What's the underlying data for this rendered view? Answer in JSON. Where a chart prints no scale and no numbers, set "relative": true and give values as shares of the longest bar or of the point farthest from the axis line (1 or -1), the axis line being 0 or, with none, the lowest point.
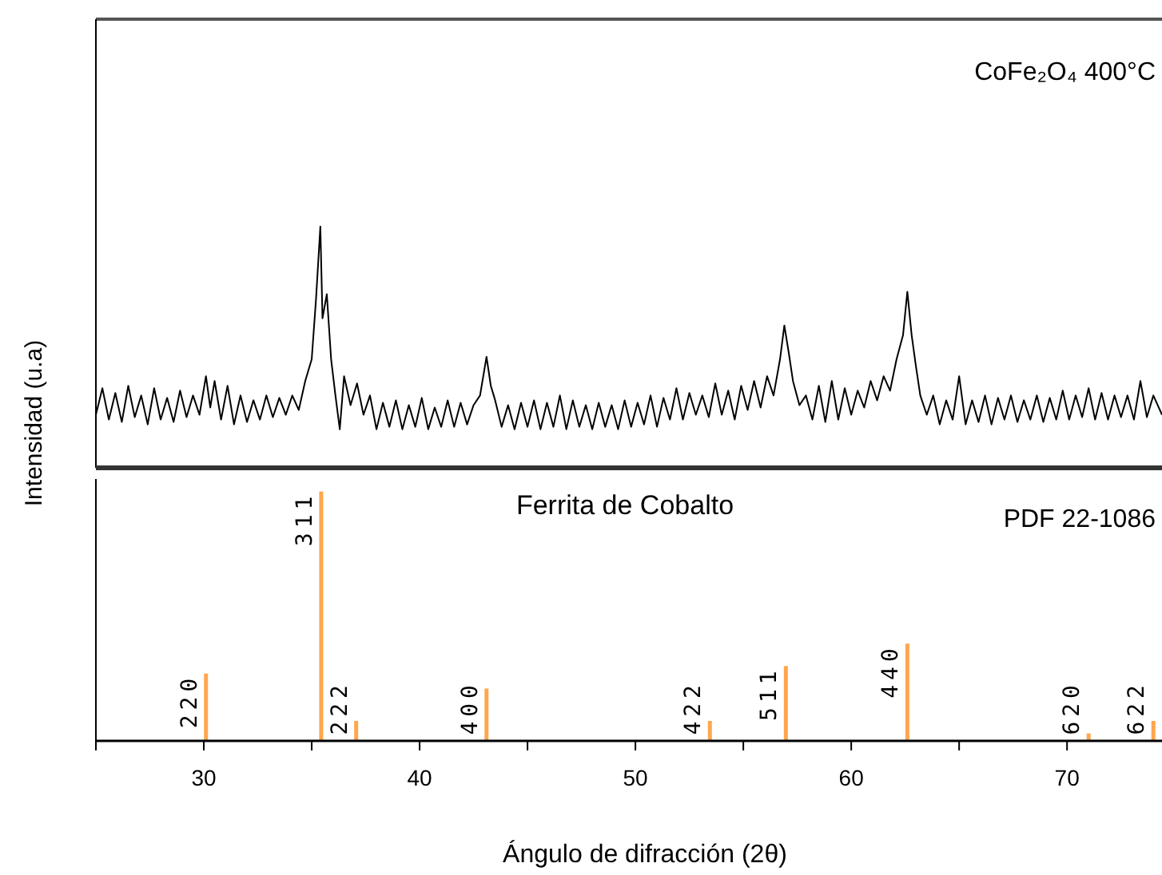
{
  "chart_data": [
    {
      "type": "line",
      "title": "CoFe₂O₄ 400°C",
      "ylabel": "Intensidad (u.a)",
      "relative": true,
      "xlim": [
        25,
        74.4
      ],
      "series": [
        {
          "color": "#000000",
          "x": [
            25.0,
            25.3,
            25.6,
            25.9,
            26.2,
            26.5,
            26.8,
            27.1,
            27.4,
            27.7,
            28.0,
            28.3,
            28.6,
            28.9,
            29.2,
            29.5,
            29.8,
            30.1,
            30.3,
            30.5,
            30.8,
            31.1,
            31.4,
            31.7,
            32.0,
            32.3,
            32.6,
            32.9,
            33.2,
            33.5,
            33.8,
            34.1,
            34.4,
            34.7,
            35.0,
            35.2,
            35.4,
            35.5,
            35.7,
            35.9,
            36.1,
            36.3,
            36.5,
            36.8,
            37.1,
            37.4,
            37.7,
            38.0,
            38.3,
            38.6,
            38.9,
            39.2,
            39.5,
            39.8,
            40.1,
            40.4,
            40.7,
            41.0,
            41.3,
            41.6,
            41.9,
            42.2,
            42.5,
            42.8,
            43.1,
            43.3,
            43.5,
            43.8,
            44.1,
            44.4,
            44.7,
            45.0,
            45.3,
            45.6,
            45.9,
            46.2,
            46.5,
            46.8,
            47.1,
            47.4,
            47.7,
            48.0,
            48.3,
            48.6,
            48.9,
            49.2,
            49.5,
            49.8,
            50.1,
            50.4,
            50.7,
            51.0,
            51.3,
            51.6,
            51.9,
            52.2,
            52.5,
            52.8,
            53.1,
            53.4,
            53.7,
            54.0,
            54.3,
            54.6,
            54.9,
            55.2,
            55.5,
            55.8,
            56.1,
            56.4,
            56.7,
            56.9,
            57.1,
            57.3,
            57.6,
            57.9,
            58.2,
            58.5,
            58.8,
            59.1,
            59.4,
            59.7,
            60.0,
            60.3,
            60.6,
            60.9,
            61.2,
            61.5,
            61.8,
            62.1,
            62.4,
            62.6,
            62.8,
            63.0,
            63.2,
            63.5,
            63.8,
            64.1,
            64.4,
            64.7,
            65.0,
            65.3,
            65.6,
            65.9,
            66.2,
            66.5,
            66.8,
            67.1,
            67.4,
            67.7,
            68.0,
            68.3,
            68.6,
            68.9,
            69.2,
            69.5,
            69.8,
            70.1,
            70.4,
            70.7,
            71.0,
            71.3,
            71.6,
            71.9,
            72.2,
            72.5,
            72.8,
            73.1,
            73.4,
            73.7,
            74.0,
            74.4
          ],
          "values": [
            0.22,
            0.33,
            0.2,
            0.31,
            0.19,
            0.34,
            0.21,
            0.3,
            0.18,
            0.33,
            0.2,
            0.29,
            0.19,
            0.32,
            0.21,
            0.3,
            0.22,
            0.38,
            0.25,
            0.36,
            0.2,
            0.34,
            0.18,
            0.3,
            0.19,
            0.28,
            0.2,
            0.3,
            0.21,
            0.29,
            0.22,
            0.3,
            0.24,
            0.36,
            0.45,
            0.7,
            1.0,
            0.62,
            0.72,
            0.45,
            0.3,
            0.16,
            0.38,
            0.26,
            0.35,
            0.22,
            0.3,
            0.16,
            0.27,
            0.17,
            0.28,
            0.16,
            0.26,
            0.17,
            0.29,
            0.16,
            0.25,
            0.17,
            0.28,
            0.17,
            0.27,
            0.18,
            0.26,
            0.3,
            0.46,
            0.34,
            0.28,
            0.17,
            0.26,
            0.16,
            0.27,
            0.17,
            0.28,
            0.16,
            0.27,
            0.17,
            0.3,
            0.16,
            0.28,
            0.17,
            0.26,
            0.16,
            0.27,
            0.17,
            0.26,
            0.16,
            0.28,
            0.17,
            0.27,
            0.18,
            0.3,
            0.17,
            0.29,
            0.2,
            0.33,
            0.2,
            0.31,
            0.22,
            0.3,
            0.21,
            0.35,
            0.22,
            0.32,
            0.2,
            0.34,
            0.24,
            0.36,
            0.25,
            0.38,
            0.3,
            0.45,
            0.59,
            0.48,
            0.36,
            0.26,
            0.3,
            0.2,
            0.34,
            0.19,
            0.36,
            0.2,
            0.33,
            0.22,
            0.32,
            0.25,
            0.36,
            0.28,
            0.38,
            0.32,
            0.45,
            0.55,
            0.73,
            0.55,
            0.42,
            0.3,
            0.22,
            0.3,
            0.18,
            0.28,
            0.2,
            0.38,
            0.18,
            0.28,
            0.19,
            0.3,
            0.18,
            0.29,
            0.2,
            0.3,
            0.19,
            0.28,
            0.2,
            0.3,
            0.19,
            0.29,
            0.2,
            0.32,
            0.2,
            0.3,
            0.21,
            0.33,
            0.2,
            0.31,
            0.2,
            0.3,
            0.21,
            0.3,
            0.2,
            0.36,
            0.21,
            0.3,
            0.22
          ]
        }
      ]
    },
    {
      "type": "bar",
      "title": "Ferrita de Cobalto",
      "xlabel": "Ángulo de difracción (2θ)",
      "relative": true,
      "xlim": [
        25,
        74.4
      ],
      "tick_labels": "x",
      "xticks": [
        {
          "value": 25,
          "label": null
        },
        30,
        {
          "value": 35,
          "label": null
        },
        40,
        {
          "value": 45,
          "label": null
        },
        50,
        {
          "value": 55,
          "label": null
        },
        60,
        {
          "value": 65,
          "label": null
        },
        70
      ],
      "x": [
        30.1,
        35.44,
        37.06,
        43.1,
        53.45,
        56.97,
        62.6,
        71.0,
        74.0
      ],
      "values": [
        0.27,
        1.0,
        0.08,
        0.21,
        0.08,
        0.3,
        0.39,
        0.03,
        0.08
      ],
      "color": "#ffa64d",
      "annotations": [
        "PDF 22-1086",
        {
          "text": "220",
          "x": 30.1,
          "y": 0.27
        },
        {
          "text": "311",
          "x": 35.44,
          "y": 1.0
        },
        {
          "text": "222",
          "x": 37.06,
          "y": 0.08
        },
        {
          "text": "400",
          "x": 43.1,
          "y": 0.21
        },
        {
          "text": "422",
          "x": 53.45,
          "y": 0.08
        },
        {
          "text": "511",
          "x": 56.97,
          "y": 0.3
        },
        {
          "text": "440",
          "x": 62.6,
          "y": 0.39
        },
        {
          "text": "620",
          "x": 71.0,
          "y": 0.03
        },
        {
          "text": "622",
          "x": 74.0,
          "y": 0.08
        }
      ]
    }
  ]
}
